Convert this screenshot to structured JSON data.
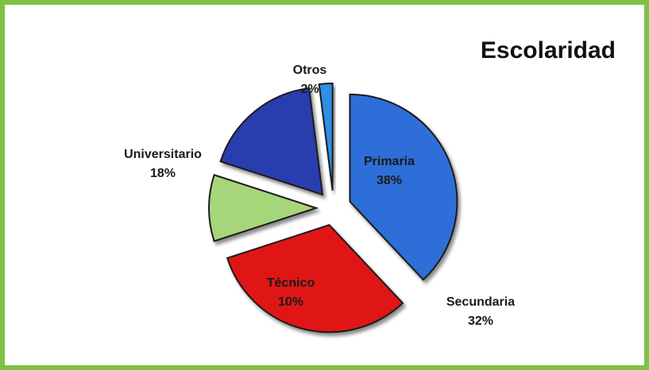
{
  "chart_data": {
    "type": "pie",
    "title": "Escolaridad",
    "categories": [
      "Primaria",
      "Secundaria",
      "Técnico",
      "Universitario",
      "Otros"
    ],
    "values": [
      38,
      32,
      10,
      18,
      2
    ],
    "value_labels": [
      "38%",
      "32%",
      "10%",
      "18%",
      "2%"
    ],
    "colors": [
      "#2f6ed8",
      "#e01212",
      "#a6d67a",
      "#2b3cae",
      "#2f8fe4"
    ]
  }
}
